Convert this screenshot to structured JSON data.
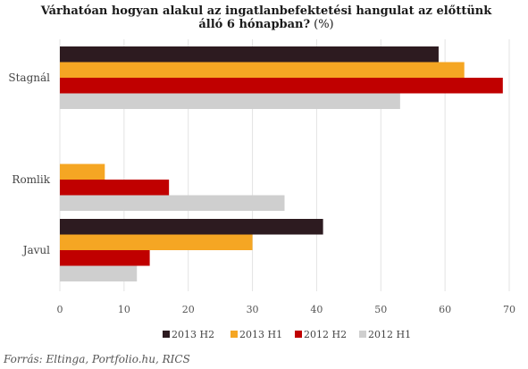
{
  "chart_data": {
    "type": "bar",
    "orientation": "horizontal",
    "title_line1": "Várhatóan hogyan alakul az ingatlanbefektetési  hangulat az előttünk",
    "title_line2": "álló 6 hónapban?",
    "title_unit": "(%)",
    "categories": [
      "Stagnál",
      "Romlik",
      "Javul"
    ],
    "series": [
      {
        "name": "2013 H2",
        "color": "#2d1b20",
        "values": [
          59,
          0,
          41
        ]
      },
      {
        "name": "2013 H1",
        "color": "#f5a623",
        "values": [
          63,
          7,
          30
        ]
      },
      {
        "name": "2012 H2",
        "color": "#c00000",
        "values": [
          69,
          17,
          14
        ]
      },
      {
        "name": "2012 H1",
        "color": "#cfcfcf",
        "values": [
          53,
          35,
          12
        ]
      }
    ],
    "xlim": [
      0,
      70
    ],
    "xticks": [
      "0",
      "10",
      "20",
      "30",
      "40",
      "50",
      "60",
      "70"
    ],
    "grid": "vertical",
    "legend_position": "bottom",
    "source": "Forrás: Eltinga, Portfolio.hu, RICS"
  }
}
